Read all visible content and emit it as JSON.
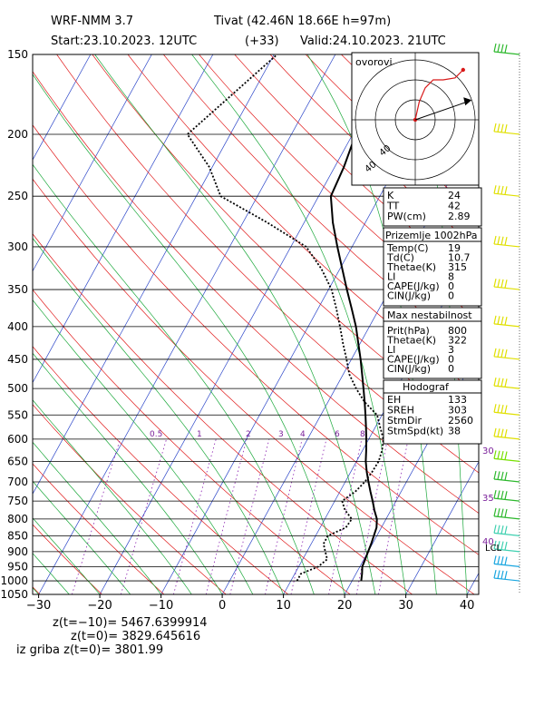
{
  "header": {
    "model": "WRF-NMM 3.7",
    "station": "Tivat (42.46N 18.66E  h=97m)",
    "start": "Start:23.10.2023.   12UTC",
    "lead": "(+33)",
    "valid": "Valid:24.10.2023.   21UTC"
  },
  "chart_data": {
    "type": "line",
    "xlabel": "",
    "ylabel": "",
    "x_ticks": [
      -30,
      -20,
      -10,
      0,
      10,
      20,
      30,
      40
    ],
    "pressure_levels": [
      150,
      200,
      250,
      300,
      350,
      400,
      450,
      500,
      550,
      600,
      650,
      700,
      750,
      800,
      850,
      900,
      950,
      1000,
      1050
    ],
    "y_scale": "log-pressure",
    "ylim": [
      1050,
      150
    ],
    "series": [
      {
        "name": "",
        "color": "#000000",
        "style": "solid",
        "points": [
          [
            1000,
            21.5
          ],
          [
            975,
            21.0
          ],
          [
            950,
            20.4
          ],
          [
            925,
            20.2
          ],
          [
            900,
            20.0
          ],
          [
            875,
            19.8
          ],
          [
            850,
            19.5
          ],
          [
            825,
            19.2
          ],
          [
            800,
            18.5
          ],
          [
            775,
            17.3
          ],
          [
            750,
            16.2
          ],
          [
            725,
            15.0
          ],
          [
            700,
            13.8
          ],
          [
            675,
            12.6
          ],
          [
            650,
            11.5
          ],
          [
            625,
            10.6
          ],
          [
            600,
            9.6
          ],
          [
            575,
            8.5
          ],
          [
            550,
            7.3
          ],
          [
            525,
            6.0
          ],
          [
            500,
            4.6
          ],
          [
            475,
            3.1
          ],
          [
            450,
            1.5
          ],
          [
            425,
            -0.3
          ],
          [
            400,
            -2.2
          ],
          [
            375,
            -4.5
          ],
          [
            350,
            -7.0
          ],
          [
            325,
            -9.6
          ],
          [
            300,
            -12.4
          ],
          [
            275,
            -15.3
          ],
          [
            250,
            -18.0
          ],
          [
            225,
            -18.5
          ],
          [
            200,
            -19.5
          ],
          [
            175,
            -16.5
          ],
          [
            150,
            -12.8
          ]
        ]
      },
      {
        "name": "",
        "color": "#000000",
        "style": "dotted",
        "points": [
          [
            1000,
            11.0
          ],
          [
            975,
            11.0
          ],
          [
            950,
            13.2
          ],
          [
            925,
            14.0
          ],
          [
            900,
            13.0
          ],
          [
            875,
            12.0
          ],
          [
            850,
            12.0
          ],
          [
            825,
            14.2
          ],
          [
            800,
            14.4
          ],
          [
            775,
            12.5
          ],
          [
            750,
            11.2
          ],
          [
            725,
            12.5
          ],
          [
            700,
            13.2
          ],
          [
            675,
            13.5
          ],
          [
            650,
            13.6
          ],
          [
            625,
            13.2
          ],
          [
            600,
            12.4
          ],
          [
            575,
            10.8
          ],
          [
            550,
            9.2
          ],
          [
            525,
            6.0
          ],
          [
            500,
            3.4
          ],
          [
            475,
            1.0
          ],
          [
            450,
            -0.8
          ],
          [
            425,
            -2.8
          ],
          [
            400,
            -4.8
          ],
          [
            375,
            -7.0
          ],
          [
            350,
            -9.5
          ],
          [
            325,
            -13.0
          ],
          [
            300,
            -17.5
          ],
          [
            275,
            -26.0
          ],
          [
            250,
            -36.0
          ],
          [
            225,
            -40.5
          ],
          [
            200,
            -47.0
          ],
          [
            175,
            -43.5
          ],
          [
            150,
            -39.5
          ]
        ]
      }
    ],
    "mixing_ratio_labels": [
      "0.5",
      "1",
      "2",
      "3",
      "4",
      "6",
      "8"
    ],
    "wind_speed_labels": [
      "30",
      "35",
      "40"
    ],
    "lcl_label": "LCL",
    "hodograph": {
      "title": "ovorovi",
      "ring_labels": [
        "40",
        "40"
      ],
      "hodo_x": [
        0.0,
        0.2,
        0.5,
        0.9,
        1.4,
        2.0,
        2.4
      ],
      "hodo_y": [
        0.0,
        0.9,
        1.6,
        2.0,
        2.0,
        2.1,
        2.5
      ],
      "storm_motion": [
        2.6,
        0.9
      ]
    },
    "wind_barbs": [
      {
        "p": 150,
        "color": "#2db82d"
      },
      {
        "p": 200,
        "color": "#e0e000"
      },
      {
        "p": 250,
        "color": "#e0e000"
      },
      {
        "p": 300,
        "color": "#e0e000"
      },
      {
        "p": 350,
        "color": "#e0e000"
      },
      {
        "p": 400,
        "color": "#e0e000"
      },
      {
        "p": 450,
        "color": "#e0e000"
      },
      {
        "p": 500,
        "color": "#e0e000"
      },
      {
        "p": 550,
        "color": "#e0e000"
      },
      {
        "p": 600,
        "color": "#e0e000"
      },
      {
        "p": 650,
        "color": "#77e000"
      },
      {
        "p": 700,
        "color": "#2db82d"
      },
      {
        "p": 750,
        "color": "#2db82d"
      },
      {
        "p": 800,
        "color": "#2db82d"
      },
      {
        "p": 850,
        "color": "#3fd0b0"
      },
      {
        "p": 900,
        "color": "#3fd0b0"
      },
      {
        "p": 950,
        "color": "#19a6e0"
      },
      {
        "p": 1000,
        "color": "#19a6e0"
      }
    ]
  },
  "indices_a": [
    {
      "label": "K",
      "value": "24"
    },
    {
      "label": "TT",
      "value": "42"
    },
    {
      "label": "PW(cm)",
      "value": "2.89"
    }
  ],
  "indices_b": {
    "title": "Prizemlje 1002hPa",
    "rows": [
      {
        "label": "Temp(C)",
        "value": "19"
      },
      {
        "label": "Td(C)",
        "value": "10.7"
      },
      {
        "label": "Thetae(K)",
        "value": "315"
      },
      {
        "label": "LI",
        "value": "8"
      },
      {
        "label": "CAPE(J/kg)",
        "value": "0"
      },
      {
        "label": "CIN(J/kg)",
        "value": "0"
      }
    ]
  },
  "indices_c": {
    "title": "Max nestabilnost",
    "rows": [
      {
        "label": "Prit(hPa)",
        "value": "800"
      },
      {
        "label": "Thetae(K)",
        "value": "322"
      },
      {
        "label": "LI",
        "value": "3"
      },
      {
        "label": "CAPE(J/kg)",
        "value": "0"
      },
      {
        "label": "CIN(J/kg)",
        "value": "0"
      }
    ]
  },
  "indices_d": {
    "title": "Hodograf",
    "rows": [
      {
        "label": "EH",
        "value": "133"
      },
      {
        "label": "SREH",
        "value": "303"
      },
      {
        "label": "StmDir",
        "value": "2560"
      },
      {
        "label": "StmSpd(kt)",
        "value": "38"
      }
    ]
  },
  "footer": {
    "line1": "z(t=−10)= 5467.6399914",
    "line2": "z(t=0)= 3829.645616",
    "line3": "iz griba z(t=0)= 3801.99"
  }
}
